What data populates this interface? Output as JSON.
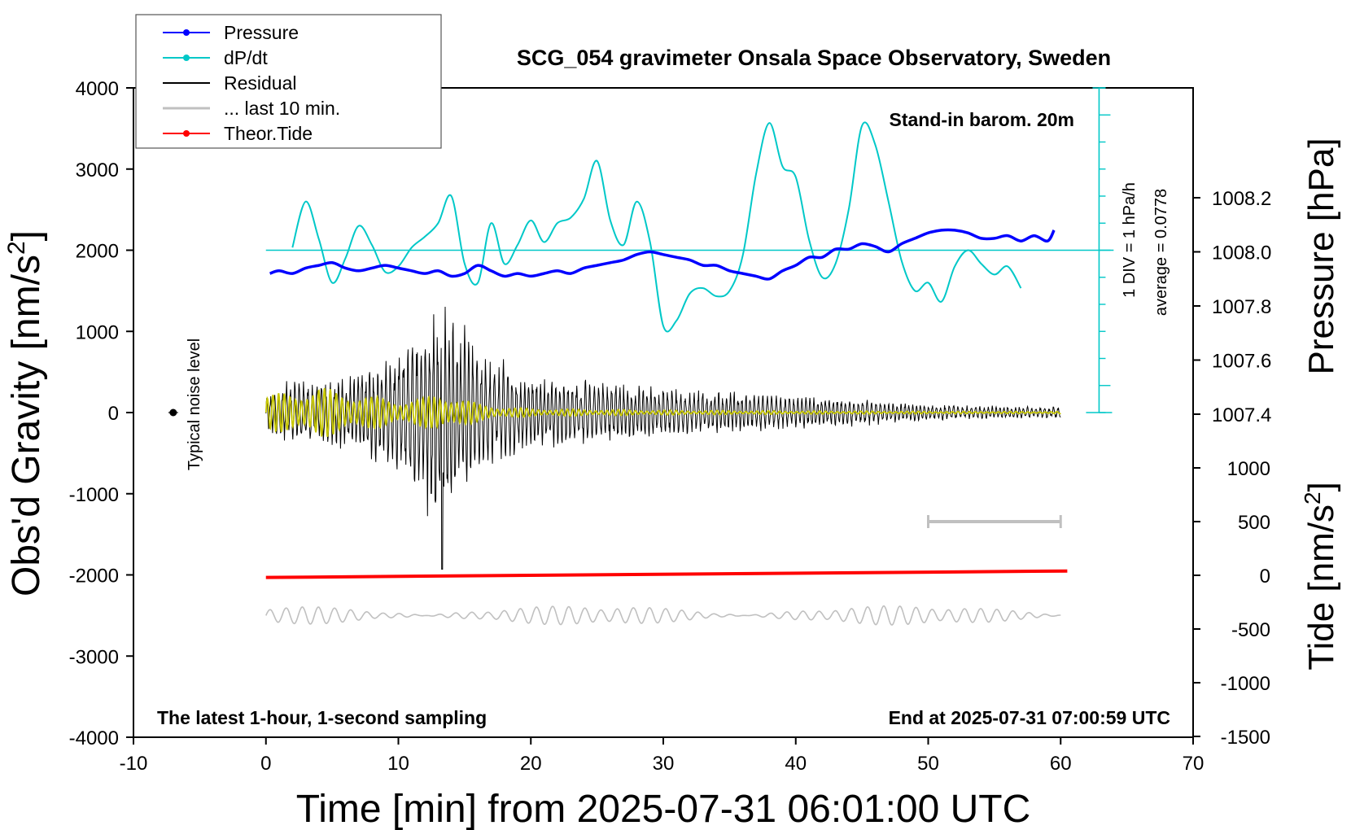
{
  "chart_data": {
    "type": "line",
    "title": "SCG_054 gravimeter Onsala Space Observatory, Sweden",
    "xlabel": "Time [min] from 2025-07-31 06:01:00 UTC",
    "ylabel_left_main": "Obs'd Gravity [nm/s",
    "ylabel_left_sup": "2",
    "ylabel_left_end": "]",
    "ylabel_right_top": "Pressure [hPa]",
    "ylabel_right_bottom_main": "Tide [nm/s",
    "ylabel_right_bottom_sup": "2",
    "ylabel_right_bottom_end": "]",
    "xlim": [
      -10,
      70
    ],
    "ylim_left": [
      -4000,
      4000
    ],
    "x_ticks": [
      "-10",
      "0",
      "10",
      "20",
      "30",
      "40",
      "50",
      "60",
      "70"
    ],
    "x_tick_values": [
      -10,
      0,
      10,
      20,
      30,
      40,
      50,
      60,
      70
    ],
    "y_left_ticks": [
      "4000",
      "3000",
      "2000",
      "1000",
      "0",
      "-1000",
      "-2000",
      "-3000",
      "-4000"
    ],
    "y_left_tick_values": [
      4000,
      3000,
      2000,
      1000,
      0,
      -1000,
      -2000,
      -3000,
      -4000
    ],
    "pressure_ticks": [
      "1008.2",
      "1008.0",
      "1007.8",
      "1007.6",
      "1007.4"
    ],
    "pressure_tick_values": [
      1008.2,
      1008.0,
      1007.8,
      1007.6,
      1007.4
    ],
    "tide_ticks": [
      "1000",
      "500",
      "0",
      "-500",
      "-1000",
      "-1500"
    ],
    "tide_tick_values": [
      1000,
      500,
      0,
      -500,
      -1000,
      -1500
    ],
    "grid": false,
    "legend_position": "top-left",
    "legend": [
      {
        "name": "Pressure",
        "color": "#0000ff",
        "marker": true
      },
      {
        "name": "dP/dt",
        "color": "#00c8c8",
        "marker": true
      },
      {
        "name": "Residual",
        "color": "#000000",
        "marker": false
      },
      {
        "name": "... last 10 min.",
        "color": "#c0c0c0",
        "marker": false
      },
      {
        "name": "Theor.Tide",
        "color": "#ff0000",
        "marker": true
      }
    ],
    "annotations": {
      "stand_in": "Stand-in barom. 20m",
      "div_label": "1 DIV = 1 hPa/h",
      "average_label": "average = 0.0778",
      "noise_label": "Typical noise level",
      "bottom_left": "The latest 1-hour, 1-second sampling",
      "bottom_right": "End at 2025-07-31 07:00:59 UTC"
    },
    "noise_level": {
      "x": -7,
      "y": 0,
      "half_range": 40
    },
    "last10_marker": {
      "x": [
        50,
        60
      ],
      "y_tide": 500
    },
    "dpdt_average_line_y": 2000,
    "series": [
      {
        "name": "Pressure",
        "axis": "pressure",
        "unit": "hPa",
        "color": "#0000ff",
        "x": [
          0.3,
          1,
          2,
          3,
          4,
          5,
          6,
          7,
          8,
          9,
          10,
          11,
          12,
          13,
          14,
          15,
          16,
          17,
          18,
          19,
          20,
          21,
          22,
          23,
          24,
          25,
          26,
          27,
          28,
          29,
          30,
          31,
          32,
          33,
          34,
          35,
          36,
          37,
          38,
          39,
          40,
          41,
          42,
          43,
          44,
          45,
          46,
          47,
          48,
          49,
          50,
          51,
          52,
          53,
          54,
          55,
          56,
          57,
          58,
          59,
          59.5
        ],
        "y": [
          1007.92,
          1007.93,
          1007.92,
          1007.94,
          1007.95,
          1007.96,
          1007.94,
          1007.93,
          1007.94,
          1007.95,
          1007.94,
          1007.93,
          1007.92,
          1007.93,
          1007.91,
          1007.92,
          1007.95,
          1007.93,
          1007.91,
          1007.92,
          1007.91,
          1007.92,
          1007.93,
          1007.92,
          1007.94,
          1007.95,
          1007.96,
          1007.97,
          1007.99,
          1008.0,
          1007.99,
          1007.98,
          1007.97,
          1007.95,
          1007.95,
          1007.93,
          1007.92,
          1007.91,
          1007.9,
          1007.93,
          1007.95,
          1007.98,
          1007.98,
          1008.01,
          1008.01,
          1008.03,
          1008.02,
          1008.0,
          1008.03,
          1008.05,
          1008.07,
          1008.08,
          1008.08,
          1008.07,
          1008.05,
          1008.05,
          1008.06,
          1008.04,
          1008.06,
          1008.04,
          1008.08
        ]
      },
      {
        "name": "dP/dt",
        "axis": "gravity_offset",
        "unit": "hPa/h (1 DIV = 1 hPa/h, centred on 2000)",
        "color": "#00c8c8",
        "x": [
          2,
          3,
          4,
          5,
          6,
          7,
          8,
          9,
          10,
          11,
          12,
          13,
          14,
          15,
          16,
          17,
          18,
          19,
          20,
          21,
          22,
          23,
          24,
          25,
          26,
          27,
          28,
          29,
          30,
          31,
          32,
          33,
          34,
          35,
          36,
          37,
          38,
          39,
          40,
          41,
          42,
          43,
          44,
          45,
          46,
          47,
          48,
          49,
          50,
          51,
          52,
          53,
          54,
          55,
          56,
          57
        ],
        "y": [
          0.1,
          1.8,
          0.4,
          -1.2,
          -0.3,
          0.9,
          0.2,
          -0.8,
          -0.6,
          0.1,
          0.5,
          1.0,
          2.0,
          -0.5,
          -1.2,
          1.0,
          -0.5,
          0.2,
          1.1,
          0.3,
          1.0,
          1.2,
          1.9,
          3.3,
          1.1,
          0.2,
          1.8,
          0.3,
          -2.8,
          -2.6,
          -1.6,
          -1.4,
          -1.7,
          -1.5,
          -0.2,
          2.8,
          4.7,
          3.1,
          2.7,
          0.4,
          -1.0,
          -0.5,
          1.5,
          4.6,
          3.9,
          1.8,
          -0.4,
          -1.5,
          -1.2,
          -1.9,
          -0.6,
          0.0,
          -0.5,
          -0.9,
          -0.6,
          -1.4
        ]
      },
      {
        "name": "Residual",
        "axis": "gravity",
        "unit": "nm/s2",
        "color": "#000000",
        "x": [
          0,
          2,
          4,
          6,
          8,
          10,
          12,
          13,
          14,
          16,
          18,
          20,
          25,
          30,
          35,
          40,
          45,
          50,
          55,
          60
        ],
        "envelope": [
          200,
          450,
          400,
          450,
          620,
          700,
          1150,
          1700,
          1200,
          800,
          600,
          450,
          380,
          300,
          250,
          200,
          150,
          100,
          80,
          70
        ]
      },
      {
        "name": "Filtered",
        "axis": "gravity",
        "unit": "nm/s2",
        "color": "#c8c800",
        "x": [
          0,
          2,
          4,
          6,
          8,
          10,
          12,
          13,
          14,
          16,
          18,
          20,
          25,
          30,
          35,
          40,
          45,
          50,
          55,
          60
        ],
        "envelope": [
          220,
          260,
          320,
          260,
          200,
          160,
          180,
          240,
          220,
          110,
          70,
          50,
          40,
          30,
          25,
          20,
          18,
          15,
          12,
          12
        ]
      },
      {
        "name": "... last 10 min.",
        "axis": "gravity",
        "unit": "nm/s2",
        "color": "#c0c0c0",
        "center": -2500,
        "amplitude": 120
      },
      {
        "name": "Theor.Tide",
        "axis": "tide",
        "unit": "nm/s2",
        "color": "#ff0000",
        "x": [
          0,
          60.5
        ],
        "y": [
          -20,
          40
        ]
      }
    ]
  }
}
